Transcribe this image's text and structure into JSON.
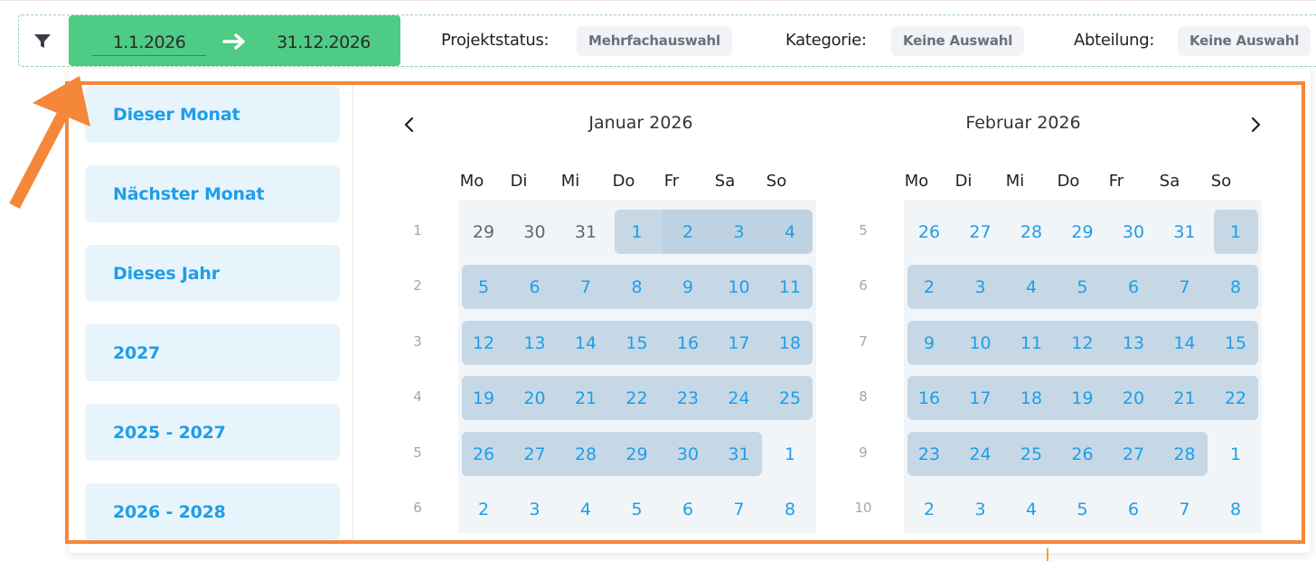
{
  "filterbar": {
    "date_start": "1.1.2026",
    "date_end": "31.12.2026",
    "filters": [
      {
        "label": "Projektstatus:",
        "value": "Mehrfachauswahl"
      },
      {
        "label": "Kategorie:",
        "value": "Keine Auswahl"
      },
      {
        "label": "Abteilung:",
        "value": "Keine Auswahl"
      }
    ]
  },
  "presets": [
    "Dieser Monat",
    "Nächster Monat",
    "Dieses Jahr",
    "2027",
    "2025 - 2027",
    "2026 - 2028"
  ],
  "calendar": {
    "weekdays": [
      "Mo",
      "Di",
      "Mi",
      "Do",
      "Fr",
      "Sa",
      "So"
    ],
    "months": [
      {
        "title": "Januar 2026",
        "weeks": [
          {
            "num": "1",
            "days": [
              "29",
              "30",
              "31",
              "1",
              "2",
              "3",
              "4"
            ]
          },
          {
            "num": "2",
            "days": [
              "5",
              "6",
              "7",
              "8",
              "9",
              "10",
              "11"
            ]
          },
          {
            "num": "3",
            "days": [
              "12",
              "13",
              "14",
              "15",
              "16",
              "17",
              "18"
            ]
          },
          {
            "num": "4",
            "days": [
              "19",
              "20",
              "21",
              "22",
              "23",
              "24",
              "25"
            ]
          },
          {
            "num": "5",
            "days": [
              "26",
              "27",
              "28",
              "29",
              "30",
              "31",
              "1"
            ]
          },
          {
            "num": "6",
            "days": [
              "2",
              "3",
              "4",
              "5",
              "6",
              "7",
              "8"
            ]
          }
        ]
      },
      {
        "title": "Februar 2026",
        "weeks": [
          {
            "num": "5",
            "days": [
              "26",
              "27",
              "28",
              "29",
              "30",
              "31",
              "1"
            ]
          },
          {
            "num": "6",
            "days": [
              "2",
              "3",
              "4",
              "5",
              "6",
              "7",
              "8"
            ]
          },
          {
            "num": "7",
            "days": [
              "9",
              "10",
              "11",
              "12",
              "13",
              "14",
              "15"
            ]
          },
          {
            "num": "8",
            "days": [
              "16",
              "17",
              "18",
              "19",
              "20",
              "21",
              "22"
            ]
          },
          {
            "num": "9",
            "days": [
              "23",
              "24",
              "25",
              "26",
              "27",
              "28",
              "1"
            ]
          },
          {
            "num": "10",
            "days": [
              "2",
              "3",
              "4",
              "5",
              "6",
              "7",
              "8"
            ]
          }
        ]
      }
    ]
  },
  "icons": {
    "filter": "filter-icon",
    "arrow": "arrow-right-icon",
    "prev": "chevron-left-icon",
    "next": "chevron-right-icon"
  },
  "colors": {
    "accent_green": "#4ecb84",
    "preset_text": "#1e9ee8",
    "range_fill": "#c6d8e6",
    "highlight_orange": "#f5873a"
  }
}
